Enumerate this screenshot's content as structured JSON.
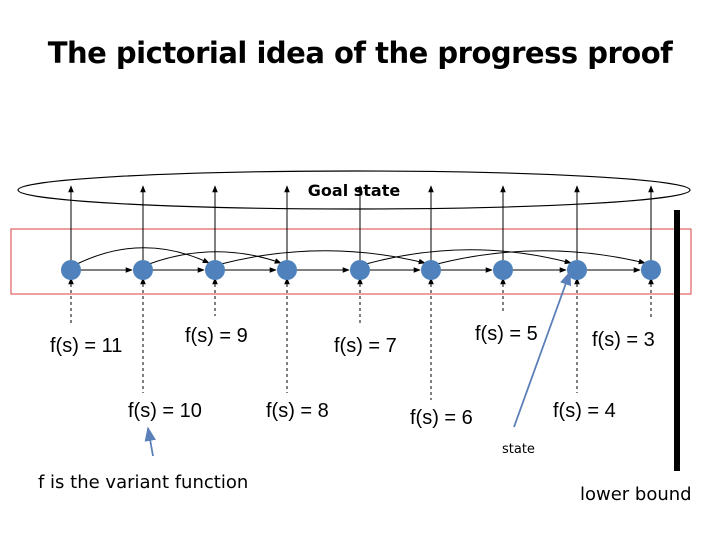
{
  "title": "The pictorial idea of the progress proof",
  "goal_label": "Goal state",
  "colors": {
    "node": "#4f81bd",
    "box": "#e06060",
    "pointer": "#5b7fb8"
  },
  "nodes": [
    {
      "label": "f(s) = 11"
    },
    {
      "label": "f(s) = 10"
    },
    {
      "label": "f(s) = 9"
    },
    {
      "label": "f(s) = 8"
    },
    {
      "label": "f(s) = 7"
    },
    {
      "label": "f(s) = 6"
    },
    {
      "label": "f(s) = 5"
    },
    {
      "label": "f(s) = 4"
    },
    {
      "label": "f(s) = 3"
    }
  ],
  "state_label": "state",
  "variant_label": "f is the variant function",
  "lower_bound_label": "lower bound"
}
